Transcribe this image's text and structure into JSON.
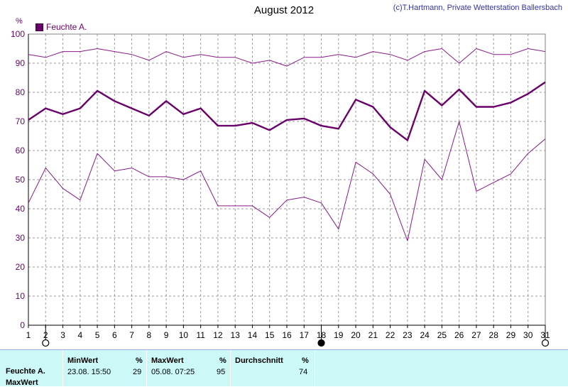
{
  "title": "August 2012",
  "copyright": "(c)T.Hartmann, Private Wetterstation Ballersbach",
  "unit": "%",
  "legend_label": "Feuchte A.",
  "chart_data": {
    "type": "line",
    "title": "August 2012",
    "ylabel": "%",
    "ylim": [
      0,
      100
    ],
    "yticks": [
      0,
      10,
      20,
      30,
      40,
      50,
      60,
      70,
      80,
      90,
      100
    ],
    "x": [
      1,
      2,
      3,
      4,
      5,
      6,
      7,
      8,
      9,
      10,
      11,
      12,
      13,
      14,
      15,
      16,
      17,
      18,
      19,
      20,
      21,
      22,
      23,
      24,
      25,
      26,
      27,
      28,
      29,
      30,
      31
    ],
    "grid": true,
    "legend_position": "top-left",
    "series": [
      {
        "name": "Feuchte A.",
        "role": "max",
        "color": "#8a1a8a",
        "values": [
          93,
          92,
          94,
          94,
          95,
          94,
          93,
          91,
          94,
          92,
          93,
          92,
          92,
          90,
          91,
          89,
          92,
          92,
          93,
          92,
          94,
          93,
          91,
          94,
          95,
          90,
          95,
          93,
          93,
          95,
          94
        ]
      },
      {
        "name": "Feuchte A.",
        "role": "avg",
        "color": "#6a006a",
        "values": [
          70.5,
          74.5,
          72.5,
          74.5,
          80.5,
          77,
          74.5,
          72,
          77,
          72.5,
          74.5,
          68.5,
          68.5,
          69.5,
          67,
          70.5,
          71,
          68.5,
          67.5,
          77.5,
          75,
          68,
          63.5,
          80.5,
          75.5,
          81,
          75,
          75,
          76.5,
          79.5,
          83.5
        ]
      },
      {
        "name": "Feuchte A.",
        "role": "min",
        "color": "#8a1a8a",
        "values": [
          42,
          54,
          47,
          43,
          59,
          53,
          54,
          51,
          51,
          50,
          53,
          41,
          41,
          41,
          37,
          43,
          44,
          42,
          33,
          56,
          52,
          45,
          29,
          57,
          50,
          70,
          46,
          49,
          52,
          59,
          64
        ]
      }
    ],
    "moon_markers": [
      {
        "day": 2,
        "phase": "full"
      },
      {
        "day": 18,
        "phase": "new"
      },
      {
        "day": 31,
        "phase": "full"
      }
    ]
  },
  "stats": {
    "row_labels": [
      "Feuchte A.",
      "MaxWert"
    ],
    "min_header": "MinWert",
    "min_unit": "%",
    "min_time": "23.08.  15:50",
    "min_value": "29",
    "max_header": "MaxWert",
    "max_unit": "%",
    "max_time": "05.08.  07:25",
    "max_value": "95",
    "avg_header": "Durchschnitt",
    "avg_unit": "%",
    "avg_value": "74"
  }
}
